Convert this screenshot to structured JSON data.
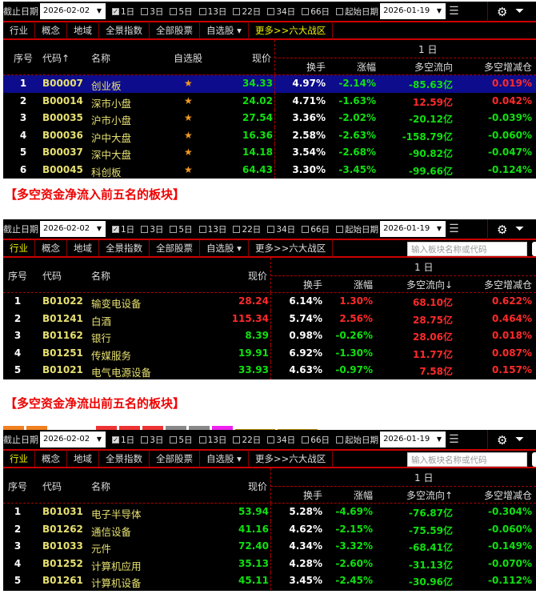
{
  "toolbar": {
    "end_date_label": "截止日期",
    "end_date": "2026-02-02",
    "periods": [
      {
        "label": "1日",
        "checked": true
      },
      {
        "label": "3日",
        "checked": false
      },
      {
        "label": "5日",
        "checked": false
      },
      {
        "label": "13日",
        "checked": false
      },
      {
        "label": "22日",
        "checked": false
      },
      {
        "label": "34日",
        "checked": false
      },
      {
        "label": "66日",
        "checked": false
      }
    ],
    "start_date_label": "起始日期",
    "start_date": "2026-01-19"
  },
  "tabs": [
    "行业",
    "概念",
    "地域",
    "全景指数",
    "全部股票",
    "自选股 ▾",
    "更多>>六大战区"
  ],
  "search_placeholder": "输入板块名称或代码",
  "colors": {
    "up": "#ff2a2a",
    "down": "#10e010",
    "selected_row": "#0c0c8c",
    "caption": "#e00000"
  },
  "captions": [
    "【多空资金净流入前五名的板块】",
    "【多空资金净流出前五名的板块】"
  ],
  "panels": [
    {
      "active_tab": null,
      "show_search": false,
      "header": {
        "idx": "序号",
        "code": "代码↑",
        "name": "名称",
        "watch": "自选股",
        "price": "现价",
        "period": "1 日",
        "turnover": "换手",
        "change": "涨幅",
        "flow": "多空流向",
        "position": "多空增减仓"
      },
      "rows": [
        {
          "idx": "1",
          "code": "B00007",
          "name": "创业板",
          "price": "34.33",
          "turnover": "4.97%",
          "change": "-2.14%",
          "flow": "-85.63亿",
          "position": "0.019%",
          "selected": true
        },
        {
          "idx": "2",
          "code": "B00014",
          "name": "深市小盘",
          "price": "24.02",
          "turnover": "4.71%",
          "change": "-1.63%",
          "flow": "12.59亿",
          "position": "0.042%"
        },
        {
          "idx": "3",
          "code": "B00035",
          "name": "沪市小盘",
          "price": "27.54",
          "turnover": "3.36%",
          "change": "-2.02%",
          "flow": "-20.12亿",
          "position": "-0.039%"
        },
        {
          "idx": "4",
          "code": "B00036",
          "name": "沪中大盘",
          "price": "16.36",
          "turnover": "2.58%",
          "change": "-2.63%",
          "flow": "-158.79亿",
          "position": "-0.060%"
        },
        {
          "idx": "5",
          "code": "B00037",
          "name": "深中大盘",
          "price": "14.18",
          "turnover": "3.54%",
          "change": "-2.68%",
          "flow": "-90.82亿",
          "position": "-0.047%"
        },
        {
          "idx": "6",
          "code": "B00045",
          "name": "科创板",
          "price": "64.43",
          "turnover": "3.30%",
          "change": "-3.45%",
          "flow": "-99.66亿",
          "position": "-0.124%"
        }
      ]
    },
    {
      "active_tab": 0,
      "show_search": true,
      "header": {
        "idx": "序号",
        "code": "代码",
        "name": "名称",
        "price": "现价",
        "period": "1 日",
        "turnover": "换手",
        "change": "涨幅",
        "flow": "多空流向↓",
        "position": "多空增减仓"
      },
      "rows": [
        {
          "idx": "1",
          "code": "B01022",
          "name": "输变电设备",
          "price": "28.24",
          "turnover": "6.14%",
          "change": "1.30%",
          "flow": "68.10亿",
          "position": "0.622%"
        },
        {
          "idx": "2",
          "code": "B01241",
          "name": "白酒",
          "price": "115.34",
          "turnover": "5.74%",
          "change": "2.56%",
          "flow": "28.75亿",
          "position": "0.464%"
        },
        {
          "idx": "3",
          "code": "B01162",
          "name": "银行",
          "price": "8.39",
          "turnover": "0.98%",
          "change": "-0.26%",
          "flow": "28.06亿",
          "position": "0.018%"
        },
        {
          "idx": "4",
          "code": "B01251",
          "name": "传媒服务",
          "price": "19.91",
          "turnover": "6.92%",
          "change": "-1.30%",
          "flow": "11.77亿",
          "position": "0.087%"
        },
        {
          "idx": "5",
          "code": "B01021",
          "name": "电气电源设备",
          "price": "33.93",
          "turnover": "4.63%",
          "change": "-0.97%",
          "flow": "7.58亿",
          "position": "0.157%"
        }
      ]
    },
    {
      "active_tab": 0,
      "show_search": true,
      "header": {
        "idx": "序号",
        "code": "代码",
        "name": "名称",
        "price": "现价",
        "period": "1 日",
        "turnover": "换手",
        "change": "涨幅",
        "flow": "多空流向↑",
        "position": "多空增减仓"
      },
      "rows": [
        {
          "idx": "1",
          "code": "B01031",
          "name": "电子半导体",
          "price": "53.94",
          "turnover": "5.28%",
          "change": "-4.69%",
          "flow": "-76.87亿",
          "position": "-0.304%"
        },
        {
          "idx": "2",
          "code": "B01262",
          "name": "通信设备",
          "price": "41.16",
          "turnover": "4.62%",
          "change": "-2.15%",
          "flow": "-75.59亿",
          "position": "-0.060%"
        },
        {
          "idx": "3",
          "code": "B01033",
          "name": "元件",
          "price": "72.40",
          "turnover": "4.34%",
          "change": "-3.32%",
          "flow": "-68.41亿",
          "position": "-0.149%"
        },
        {
          "idx": "4",
          "code": "B01252",
          "name": "计算机应用",
          "price": "35.13",
          "turnover": "4.28%",
          "change": "-2.60%",
          "flow": "-31.13亿",
          "position": "-0.070%"
        },
        {
          "idx": "5",
          "code": "B01261",
          "name": "计算机设备",
          "price": "45.11",
          "turnover": "3.45%",
          "change": "-2.45%",
          "flow": "-30.96亿",
          "position": "-0.112%"
        }
      ]
    }
  ]
}
